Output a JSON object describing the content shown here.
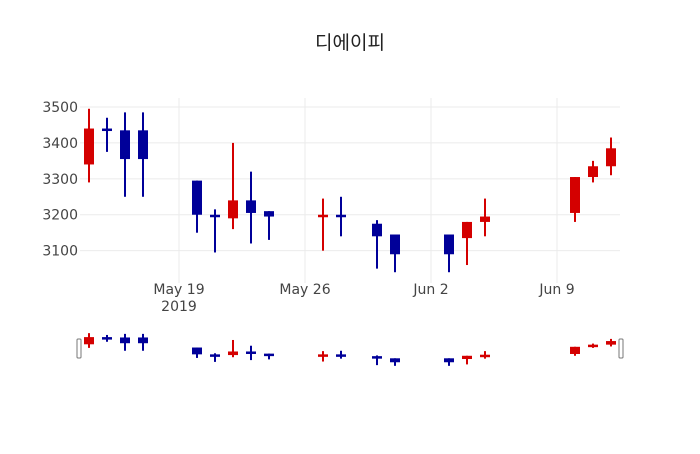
{
  "chart_data": {
    "type": "candlestick",
    "title": "디에이피",
    "xlabel": "",
    "ylabel": "",
    "ylim": [
      3010,
      3525
    ],
    "yticks": [
      3100,
      3200,
      3300,
      3400,
      3500
    ],
    "xticks": [
      {
        "label": "May 19",
        "sub": "2019",
        "date": "2019-05-19"
      },
      {
        "label": "May 26",
        "sub": "",
        "date": "2019-05-26"
      },
      {
        "label": "Jun 2",
        "sub": "",
        "date": "2019-06-02"
      },
      {
        "label": "Jun 9",
        "sub": "",
        "date": "2019-06-09"
      }
    ],
    "xrange": [
      "2019-05-13T12:00",
      "2019-06-12T12:00"
    ],
    "grid": true,
    "rangeslider": true,
    "increasing_color": "#d40000",
    "decreasing_color": "#000099",
    "candles": [
      {
        "date": "2019-05-14",
        "open": 3340,
        "high": 3495,
        "low": 3290,
        "close": 3440
      },
      {
        "date": "2019-05-15",
        "open": 3440,
        "high": 3470,
        "low": 3375,
        "close": 3435
      },
      {
        "date": "2019-05-16",
        "open": 3435,
        "high": 3485,
        "low": 3250,
        "close": 3355
      },
      {
        "date": "2019-05-17",
        "open": 3435,
        "high": 3485,
        "low": 3250,
        "close": 3355
      },
      {
        "date": "2019-05-20",
        "open": 3295,
        "high": 3295,
        "low": 3150,
        "close": 3200
      },
      {
        "date": "2019-05-21",
        "open": 3200,
        "high": 3215,
        "low": 3095,
        "close": 3195
      },
      {
        "date": "2019-05-22",
        "open": 3190,
        "high": 3400,
        "low": 3160,
        "close": 3240
      },
      {
        "date": "2019-05-23",
        "open": 3240,
        "high": 3320,
        "low": 3120,
        "close": 3205
      },
      {
        "date": "2019-05-24",
        "open": 3210,
        "high": 3210,
        "low": 3130,
        "close": 3195
      },
      {
        "date": "2019-05-27",
        "open": 3195,
        "high": 3245,
        "low": 3100,
        "close": 3200
      },
      {
        "date": "2019-05-28",
        "open": 3200,
        "high": 3250,
        "low": 3140,
        "close": 3195
      },
      {
        "date": "2019-05-30",
        "open": 3175,
        "high": 3185,
        "low": 3050,
        "close": 3140
      },
      {
        "date": "2019-05-31",
        "open": 3145,
        "high": 3145,
        "low": 3040,
        "close": 3090
      },
      {
        "date": "2019-06-03",
        "open": 3145,
        "high": 3145,
        "low": 3040,
        "close": 3090
      },
      {
        "date": "2019-06-04",
        "open": 3135,
        "high": 3180,
        "low": 3060,
        "close": 3180
      },
      {
        "date": "2019-06-05",
        "open": 3180,
        "high": 3245,
        "low": 3140,
        "close": 3195
      },
      {
        "date": "2019-06-10",
        "open": 3205,
        "high": 3305,
        "low": 3180,
        "close": 3305
      },
      {
        "date": "2019-06-11",
        "open": 3305,
        "high": 3350,
        "low": 3290,
        "close": 3335
      },
      {
        "date": "2019-06-12",
        "open": 3335,
        "high": 3415,
        "low": 3310,
        "close": 3385
      }
    ]
  }
}
